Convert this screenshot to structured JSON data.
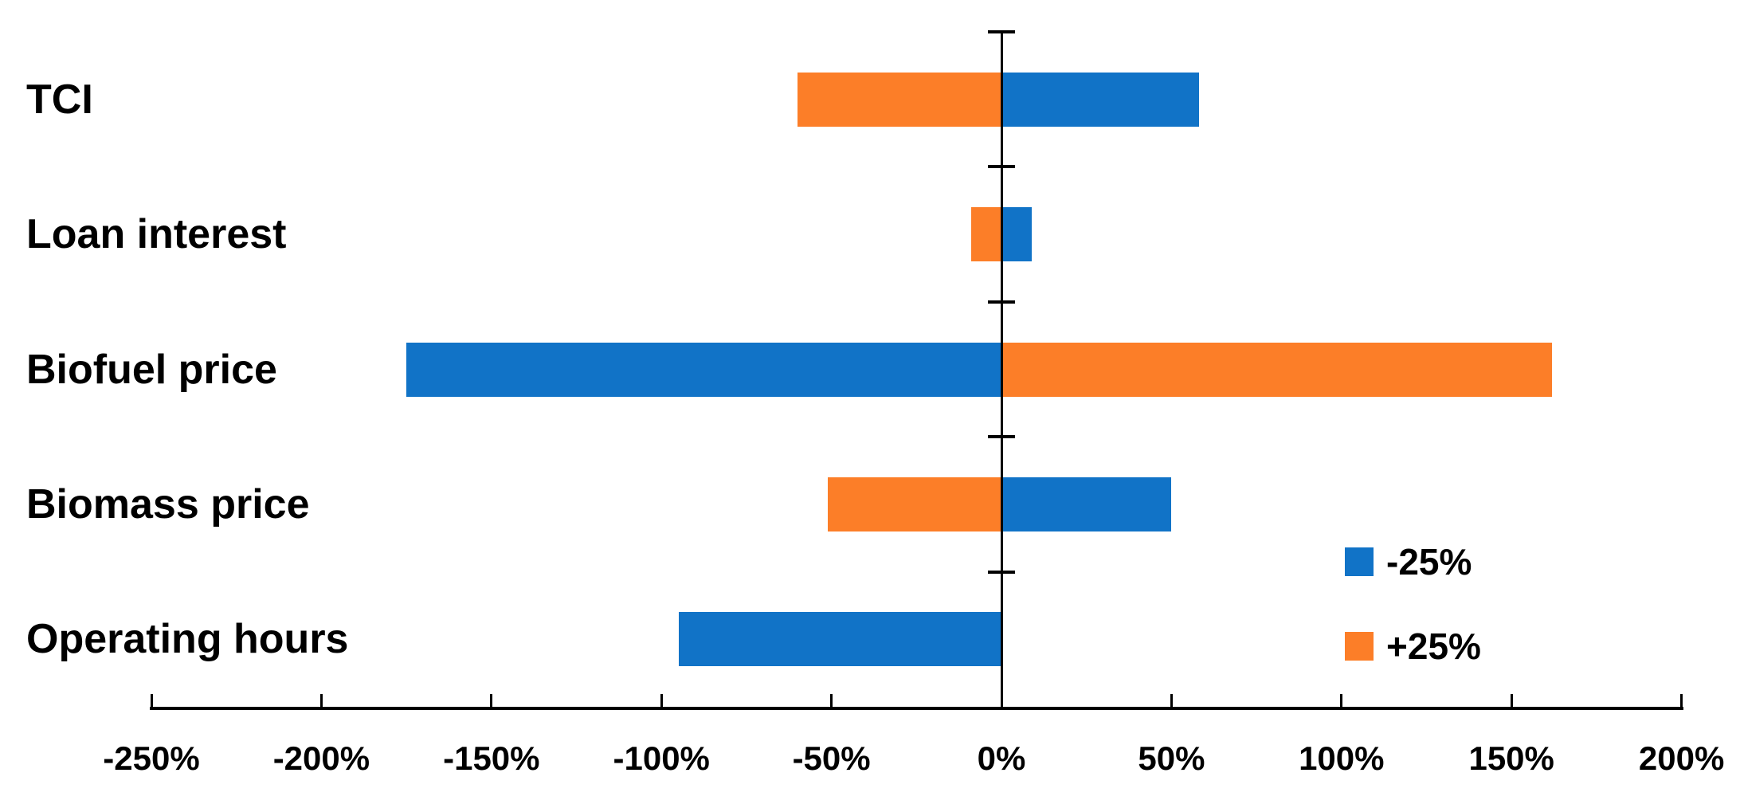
{
  "chart_data": {
    "type": "bar",
    "orientation": "horizontal",
    "title": "",
    "xlabel": "",
    "ylabel": "",
    "categories": [
      "TCI",
      "Loan interest",
      "Biofuel price",
      "Biomass price",
      "Operating hours"
    ],
    "series": [
      {
        "name": "-25%",
        "color": "#1173C7",
        "values": [
          58,
          9,
          -175,
          50,
          -95
        ]
      },
      {
        "name": "+25%",
        "color": "#FC7E28",
        "values": [
          -60,
          -9,
          162,
          -51,
          0
        ]
      }
    ],
    "x_axis": {
      "min": -250,
      "max": 200,
      "step": 50,
      "tick_labels": [
        "-250%",
        "-200%",
        "-150%",
        "-100%",
        "-50%",
        "0%",
        "50%",
        "100%",
        "150%",
        "200%"
      ]
    },
    "legend": {
      "position": "inside-right-lower",
      "entries": [
        {
          "label": "-25%",
          "color": "#1173C7"
        },
        {
          "label": "+25%",
          "color": "#FC7E28"
        }
      ]
    },
    "grid": false,
    "axis_color": "#000000",
    "background_color": "#FFFFFF"
  }
}
